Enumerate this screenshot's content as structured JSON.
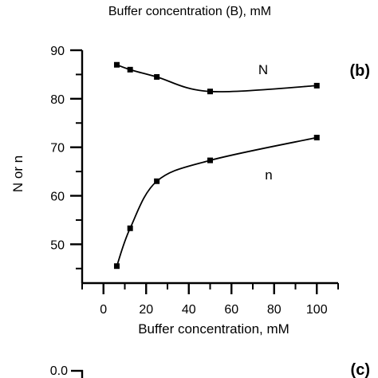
{
  "top_caption": "Buffer concentration (B), mM",
  "chart_data": [
    {
      "type": "scatter",
      "panel_label": "(b)",
      "xlabel": "Buffer concentration, mM",
      "ylabel": "N or n",
      "xlim": [
        -10,
        110
      ],
      "ylim": [
        42,
        90
      ],
      "x_ticks": [
        "0",
        "20",
        "40",
        "60",
        "80",
        "100"
      ],
      "y_ticks": [
        "50",
        "60",
        "70",
        "80",
        "90"
      ],
      "grid": false,
      "series": [
        {
          "name": "N",
          "x": [
            6.25,
            12.5,
            25,
            50,
            100
          ],
          "y": [
            87,
            86,
            84.5,
            81.5,
            82.7
          ],
          "fit_line": true
        },
        {
          "name": "n",
          "x": [
            6.25,
            12.5,
            25,
            50,
            100
          ],
          "y": [
            45.5,
            53.3,
            63,
            67.3,
            72
          ],
          "fit_line": true
        }
      ]
    },
    {
      "type": "line",
      "panel_label": "(c)",
      "y_ticks": [
        "0.0"
      ]
    }
  ]
}
